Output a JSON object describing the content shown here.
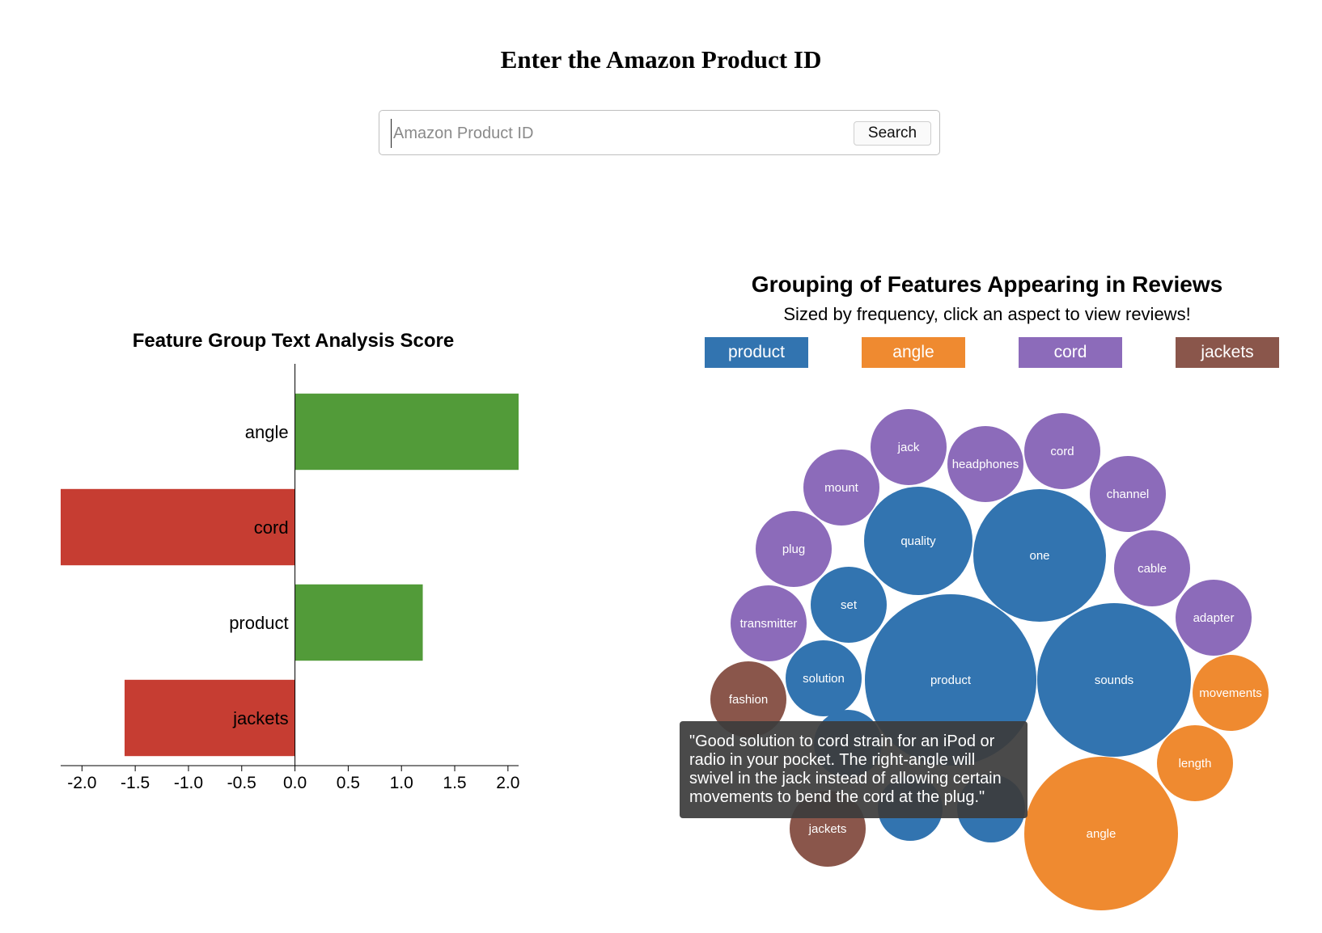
{
  "page": {
    "heading": "Enter the Amazon Product ID"
  },
  "search": {
    "placeholder": "Amazon Product ID",
    "value": "",
    "button_label": "Search"
  },
  "bar_chart_title": "Feature Group Text Analysis Score",
  "bubble_chart": {
    "title": "Grouping of Features Appearing in Reviews",
    "subtitle": "Sized by frequency, click an aspect to view reviews!",
    "legend": [
      {
        "label": "product",
        "color": "#3274b0"
      },
      {
        "label": "angle",
        "color": "#ef8a30"
      },
      {
        "label": "cord",
        "color": "#8c6bba"
      },
      {
        "label": "jackets",
        "color": "#8a564b"
      }
    ]
  },
  "tooltip": {
    "text": "\"Good solution to cord strain for an iPod or radio in your pocket. The right-angle will swivel in the jack instead of allowing certain movements to bend the cord at the plug.\""
  },
  "colors": {
    "positive": "#529b39",
    "negative": "#c63d32",
    "product": "#3274b0",
    "angle": "#ef8a30",
    "cord": "#8c6bba",
    "jackets": "#8a564b"
  },
  "chart_data": [
    {
      "type": "bar",
      "orientation": "horizontal",
      "title": "Feature Group Text Analysis Score",
      "categories": [
        "angle",
        "cord",
        "product",
        "jackets"
      ],
      "values": [
        2.1,
        -2.2,
        1.2,
        -1.6
      ],
      "xlim": [
        -2.2,
        2.1
      ],
      "xticks": [
        "-2.0",
        "-1.5",
        "-1.0",
        "-0.5",
        "0.0",
        "0.5",
        "1.0",
        "1.5",
        "2.0"
      ],
      "grid": false
    },
    {
      "type": "bubble",
      "title": "Grouping of Features Appearing in Reviews",
      "subtitle": "Sized by frequency, click an aspect to view reviews!",
      "groups": [
        "product",
        "angle",
        "cord",
        "jackets"
      ],
      "bubbles": [
        {
          "label": "product",
          "group": "product",
          "frequency": 100
        },
        {
          "label": "sounds",
          "group": "product",
          "frequency": 81
        },
        {
          "label": "one",
          "group": "product",
          "frequency": 64
        },
        {
          "label": "quality",
          "group": "product",
          "frequency": 42
        },
        {
          "label": "set",
          "group": "product",
          "frequency": 21
        },
        {
          "label": "solution",
          "group": "product",
          "frequency": 21
        },
        {
          "label": "angle",
          "group": "angle",
          "frequency": 81
        },
        {
          "label": "movements",
          "group": "angle",
          "frequency": 20
        },
        {
          "label": "length",
          "group": "angle",
          "frequency": 20
        },
        {
          "label": "jack",
          "group": "cord",
          "frequency": 20
        },
        {
          "label": "headphones",
          "group": "cord",
          "frequency": 20
        },
        {
          "label": "cord",
          "group": "cord",
          "frequency": 20
        },
        {
          "label": "mount",
          "group": "cord",
          "frequency": 20
        },
        {
          "label": "channel",
          "group": "cord",
          "frequency": 20
        },
        {
          "label": "plug",
          "group": "cord",
          "frequency": 20
        },
        {
          "label": "cable",
          "group": "cord",
          "frequency": 20
        },
        {
          "label": "adapter",
          "group": "cord",
          "frequency": 20
        },
        {
          "label": "transmitter",
          "group": "cord",
          "frequency": 20
        },
        {
          "label": "fashion",
          "group": "jackets",
          "frequency": 20
        },
        {
          "label": "jackets",
          "group": "jackets",
          "frequency": 20
        }
      ]
    }
  ]
}
